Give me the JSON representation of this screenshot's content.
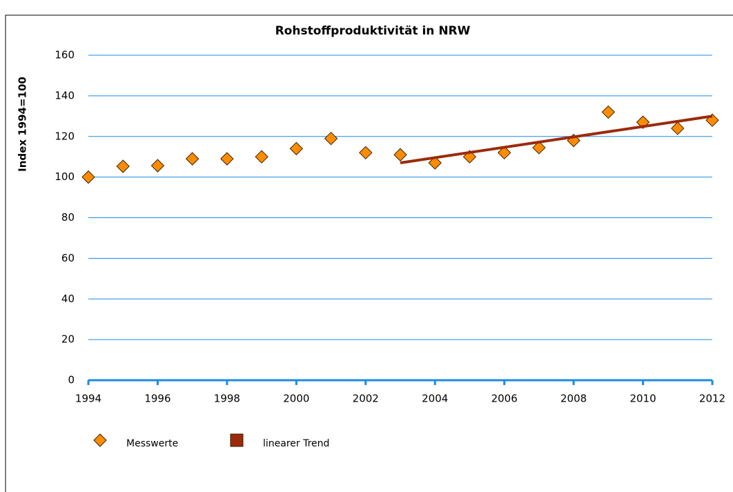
{
  "chart_data": {
    "type": "scatter",
    "title": "Rohstoffproduktivität in NRW",
    "y_label": "Index 1994=100",
    "xlim": [
      1994,
      2012
    ],
    "xticks": [
      1994,
      1996,
      1998,
      2000,
      2002,
      2004,
      2006,
      2008,
      2010,
      2012
    ],
    "ylim": [
      0,
      160
    ],
    "yticks": [
      0,
      20,
      40,
      60,
      80,
      100,
      120,
      140,
      160
    ],
    "grid": true,
    "grid_color": "#1a8ae6",
    "legend": "bottom",
    "series": [
      {
        "name": "Messwerte",
        "color": "#ff8c00",
        "mode": "markers",
        "x": [
          1994,
          1995,
          1996,
          1997,
          1998,
          1999,
          2000,
          2001,
          2002,
          2003,
          2004,
          2005,
          2006,
          2007,
          2008,
          2009,
          2010,
          2011,
          2012
        ],
        "values": [
          100,
          105.3,
          105.6,
          109,
          109,
          110,
          114,
          119,
          112,
          111,
          107,
          110,
          112,
          114.5,
          118,
          132,
          127,
          124,
          128
        ]
      },
      {
        "name": "linearer Trend",
        "color": "#9b2a0a",
        "mode": "line",
        "x": [
          2003,
          2012
        ],
        "values": [
          107,
          130
        ]
      }
    ]
  }
}
